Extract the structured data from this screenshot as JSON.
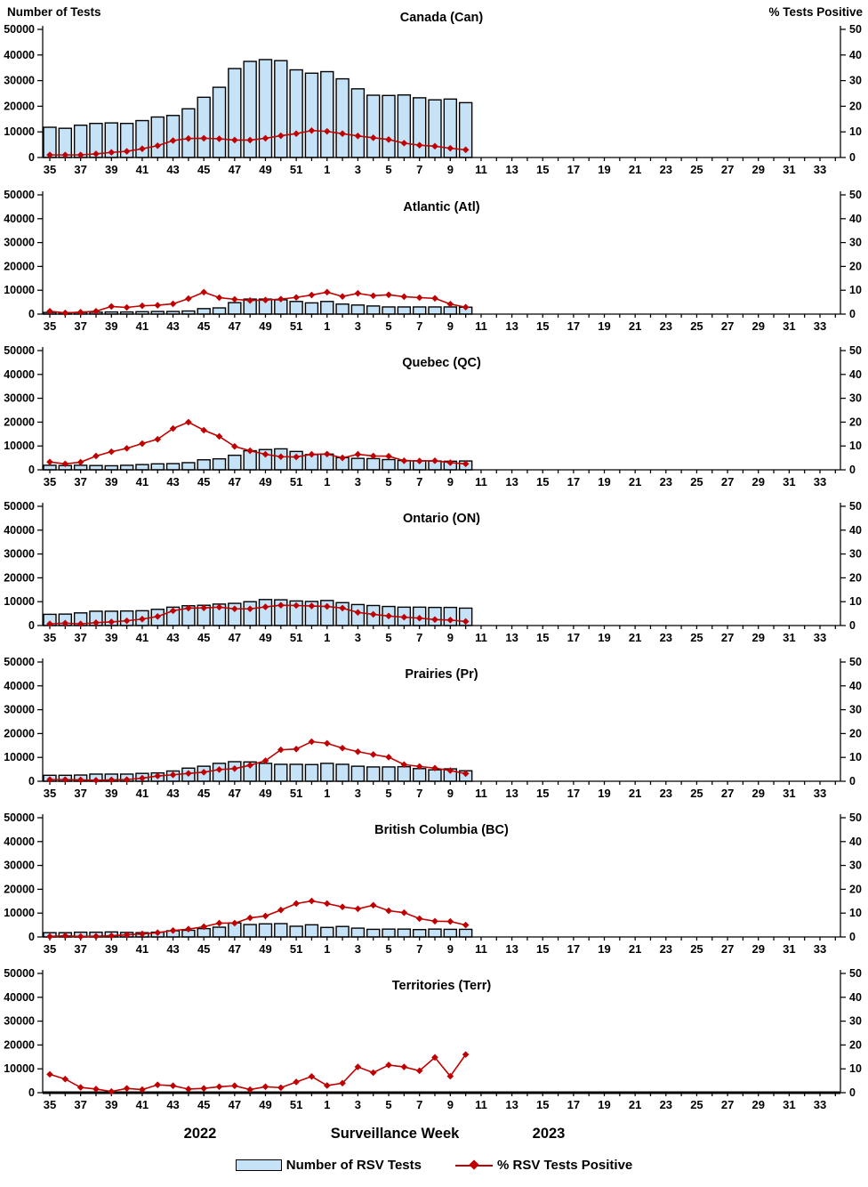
{
  "header": {
    "left_axis_title": "Number of Tests",
    "right_axis_title": "% Tests Positive"
  },
  "footer": {
    "year_left": "2022",
    "axis_title": "Surveillance Week",
    "year_right": "2023",
    "legend": [
      {
        "swatch": "bar-swatch",
        "label": "Number of RSV Tests"
      },
      {
        "swatch": "line-marker",
        "label": "% RSV Tests Positive"
      }
    ]
  },
  "colors": {
    "bar_fill": "#C6E2F7",
    "bar_stroke": "#000000",
    "line": "#C00000",
    "marker": "#C00000",
    "axis": "#000000",
    "text": "#000000"
  },
  "axes": {
    "left_ylim": [
      0,
      50000
    ],
    "left_ticks": [
      0,
      10000,
      20000,
      30000,
      40000,
      50000
    ],
    "right_ylim": [
      0,
      50
    ],
    "right_ticks": [
      0,
      10,
      20,
      30,
      40,
      50
    ],
    "weeks": [
      35,
      36,
      37,
      38,
      39,
      40,
      41,
      42,
      43,
      44,
      45,
      46,
      47,
      48,
      49,
      50,
      51,
      52,
      1,
      2,
      3,
      4,
      5,
      6,
      7,
      8,
      9,
      10,
      11,
      12,
      13,
      14,
      15,
      16,
      17,
      18,
      19,
      20,
      21,
      22,
      23,
      24,
      25,
      26,
      27,
      28,
      29,
      30,
      31,
      32,
      33,
      34
    ],
    "labeled_weeks_are_odd": true
  },
  "chart_data": [
    {
      "type": "bar+line",
      "id": "canada",
      "title": "Canada (Can)",
      "bar_series_name": "Number of RSV Tests",
      "line_series_name": "% RSV Tests Positive",
      "bars": [
        11800,
        11400,
        12600,
        13300,
        13500,
        13300,
        14400,
        15800,
        16400,
        19000,
        23500,
        27400,
        34700,
        37500,
        38200,
        37800,
        34200,
        32900,
        33500,
        30700,
        26800,
        24300,
        24200,
        24400,
        23300,
        22500,
        22800,
        21400
      ],
      "line": [
        1.0,
        1.0,
        1.0,
        1.4,
        2.0,
        2.4,
        3.4,
        4.6,
        6.6,
        7.4,
        7.5,
        7.3,
        6.8,
        6.8,
        7.5,
        8.5,
        9.3,
        10.5,
        10.2,
        9.3,
        8.4,
        7.7,
        7.0,
        5.6,
        4.8,
        4.4,
        3.6,
        3.0
      ]
    },
    {
      "type": "bar+line",
      "id": "atlantic",
      "title": "Atlantic (Atl)",
      "bar_series_name": "Number of RSV Tests",
      "line_series_name": "% RSV Tests Positive",
      "bars": [
        700,
        600,
        700,
        800,
        900,
        900,
        1000,
        1100,
        1100,
        1300,
        2300,
        2600,
        4800,
        6300,
        6300,
        6000,
        5300,
        4700,
        5300,
        4200,
        3800,
        3400,
        3000,
        3000,
        3000,
        3000,
        3000,
        2900
      ],
      "line": [
        1.2,
        0.5,
        0.8,
        1.2,
        3.2,
        2.8,
        3.5,
        3.7,
        4.3,
        6.5,
        9.2,
        6.9,
        6.2,
        5.7,
        5.9,
        6.3,
        7.0,
        8.0,
        9.2,
        7.4,
        8.7,
        7.7,
        8.1,
        7.3,
        6.9,
        6.6,
        4.2,
        2.9
      ]
    },
    {
      "type": "bar+line",
      "id": "quebec",
      "title": "Quebec (QC)",
      "bar_series_name": "Number of RSV Tests",
      "line_series_name": "% RSV Tests Positive",
      "bars": [
        1900,
        1800,
        1900,
        1800,
        1700,
        1900,
        2200,
        2500,
        2600,
        3000,
        4200,
        4600,
        6100,
        8000,
        8500,
        8800,
        7700,
        6400,
        6600,
        5100,
        4800,
        4700,
        4300,
        3900,
        3800,
        3700,
        3600,
        3700
      ],
      "line": [
        3.3,
        2.5,
        3.2,
        5.8,
        7.6,
        9.0,
        11.0,
        12.8,
        17.3,
        20.0,
        16.6,
        14.0,
        9.8,
        8.0,
        6.5,
        5.5,
        5.4,
        6.5,
        6.6,
        5.0,
        6.5,
        5.8,
        5.7,
        3.8,
        3.7,
        3.8,
        3.0,
        2.5
      ]
    },
    {
      "type": "bar+line",
      "id": "ontario",
      "title": "Ontario (ON)",
      "bar_series_name": "Number of RSV Tests",
      "line_series_name": "% RSV Tests Positive",
      "bars": [
        4700,
        4800,
        5300,
        6000,
        6000,
        6100,
        6200,
        6800,
        7700,
        8300,
        8500,
        9000,
        9300,
        10000,
        10900,
        10800,
        10300,
        10100,
        10500,
        9600,
        8800,
        8400,
        8000,
        7700,
        7700,
        7600,
        7600,
        7300
      ],
      "line": [
        0.7,
        1.0,
        0.7,
        1.2,
        1.5,
        2.0,
        2.7,
        3.8,
        6.2,
        7.3,
        7.4,
        7.7,
        7.0,
        7.0,
        7.8,
        8.5,
        8.4,
        8.2,
        8.0,
        7.3,
        5.5,
        4.7,
        4.0,
        3.5,
        3.1,
        2.5,
        2.3,
        1.7
      ]
    },
    {
      "type": "bar+line",
      "id": "prairies",
      "title": "Prairies (Pr)",
      "bar_series_name": "Number of RSV Tests",
      "line_series_name": "% RSV Tests Positive",
      "bars": [
        2500,
        2500,
        2600,
        3000,
        3000,
        3000,
        3300,
        3500,
        4300,
        5500,
        6300,
        7500,
        8200,
        8100,
        7500,
        7100,
        7100,
        7000,
        7500,
        7100,
        6300,
        6000,
        6000,
        6100,
        5300,
        4800,
        5200,
        4400
      ],
      "line": [
        0.7,
        0.7,
        0.6,
        0.4,
        0.6,
        0.7,
        1.3,
        2.2,
        2.7,
        3.3,
        3.8,
        4.9,
        5.3,
        6.7,
        8.6,
        13.2,
        13.5,
        16.6,
        15.9,
        13.9,
        12.4,
        11.2,
        10.1,
        7.0,
        6.2,
        5.5,
        4.5,
        3.2
      ]
    },
    {
      "type": "bar+line",
      "id": "british-columbia",
      "title": "British Columbia (BC)",
      "bar_series_name": "Number of RSV Tests",
      "line_series_name": "% RSV Tests Positive",
      "bars": [
        1800,
        1800,
        2000,
        2000,
        2100,
        1900,
        1800,
        2000,
        2600,
        2800,
        3500,
        4100,
        5900,
        5200,
        5500,
        5600,
        4500,
        5100,
        4000,
        4400,
        3700,
        3200,
        3300,
        3300,
        3100,
        3300,
        3200,
        3200
      ],
      "line": [
        0.2,
        0.5,
        0.2,
        0.3,
        0.5,
        0.9,
        1.3,
        1.8,
        2.7,
        3.3,
        4.3,
        5.8,
        5.8,
        8.0,
        8.8,
        11.3,
        14.0,
        15.1,
        14.0,
        12.6,
        11.8,
        13.3,
        11.0,
        10.2,
        7.7,
        6.6,
        6.5,
        5.0
      ]
    },
    {
      "type": "bar+line",
      "id": "territories",
      "title": "Territories (Terr)",
      "bar_series_name": "Number of RSV Tests",
      "line_series_name": "% RSV Tests Positive",
      "bars": [],
      "line": [
        7.7,
        5.7,
        2.2,
        1.5,
        0.5,
        1.8,
        1.3,
        3.3,
        2.9,
        1.5,
        1.8,
        2.5,
        2.9,
        1.3,
        2.5,
        2.1,
        4.5,
        6.8,
        3.0,
        4.0,
        10.8,
        8.4,
        11.6,
        10.8,
        9.2,
        14.8,
        6.9,
        16.0
      ]
    }
  ]
}
